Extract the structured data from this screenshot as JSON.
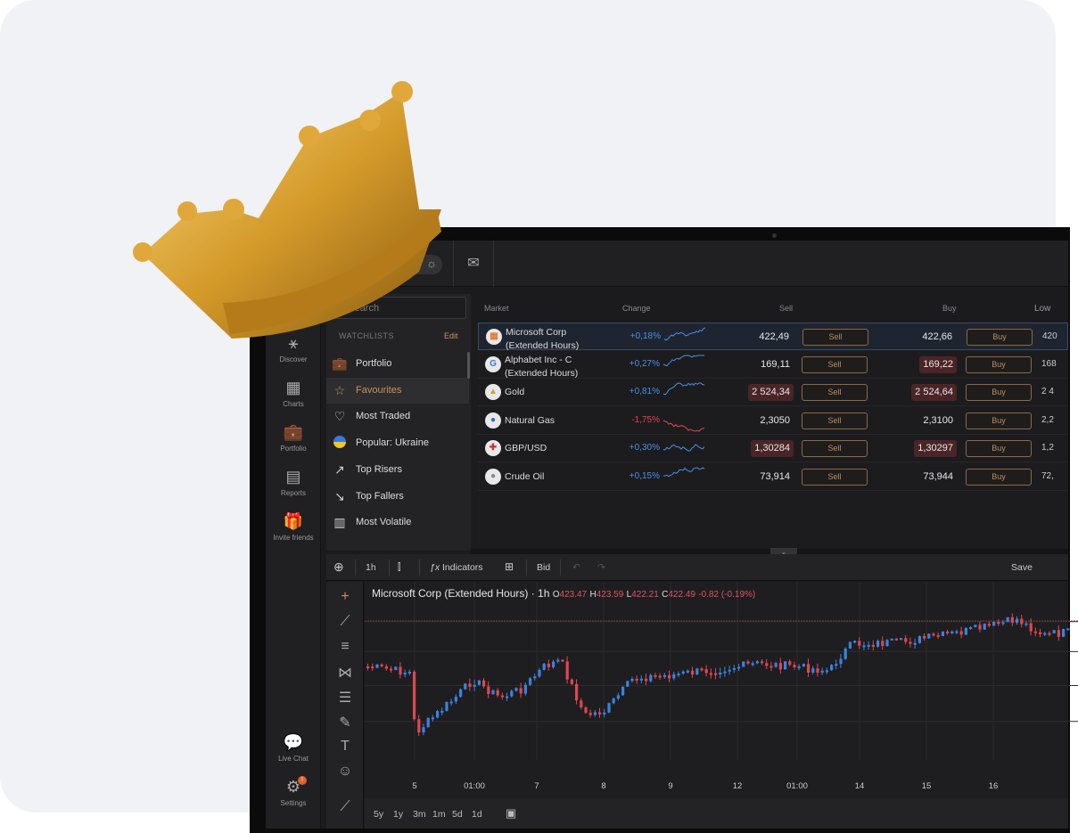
{
  "topbar": {
    "theme_dark_icon": "moon-icon",
    "theme_light_icon": "sun-icon",
    "mail_icon": "mail-icon"
  },
  "nav": [
    {
      "label": "Discover",
      "icon": "network-icon"
    },
    {
      "label": "Charts",
      "icon": "chart-icon"
    },
    {
      "label": "Portfolio",
      "icon": "briefcase-icon"
    },
    {
      "label": "Reports",
      "icon": "report-icon"
    },
    {
      "label": "Invite friends",
      "icon": "gift-icon"
    },
    {
      "label": "Live Chat",
      "icon": "chat-icon"
    },
    {
      "label": "Settings",
      "icon": "gear-icon",
      "badge": "!"
    }
  ],
  "search": {
    "placeholder": "Search"
  },
  "watchlists": {
    "title": "WATCHLISTS",
    "edit": "Edit",
    "items": [
      {
        "label": "Portfolio",
        "icon": "briefcase-icon"
      },
      {
        "label": "Favourites",
        "icon": "star-icon",
        "active": true
      },
      {
        "label": "Most Traded",
        "icon": "heart-icon"
      },
      {
        "label": "Popular: Ukraine",
        "icon": "ukraine-flag-icon"
      },
      {
        "label": "Top Risers",
        "icon": "trend-up-icon"
      },
      {
        "label": "Top Fallers",
        "icon": "trend-down-icon"
      },
      {
        "label": "Most Volatile",
        "icon": "bar-chart-icon"
      }
    ]
  },
  "table": {
    "headers": {
      "market": "Market",
      "change": "Change",
      "sell": "Sell",
      "buy": "Buy",
      "low": "Low"
    },
    "sell_label": "Sell",
    "buy_label": "Buy",
    "rows": [
      {
        "name1": "Microsoft Corp",
        "name2": "(Extended Hours)",
        "change": "+0,18%",
        "sell": "422,49",
        "buy": "422,66",
        "low": "420",
        "up": true,
        "sell_hl": false,
        "buy_hl": false,
        "selected": true
      },
      {
        "name1": "Alphabet Inc - C",
        "name2": "(Extended Hours)",
        "change": "+0,27%",
        "sell": "169,11",
        "buy": "169,22",
        "low": "168",
        "up": true,
        "sell_hl": false,
        "buy_hl": true
      },
      {
        "name1": "Gold",
        "name2": "",
        "change": "+0,81%",
        "sell": "2 524,34",
        "buy": "2 524,64",
        "low": "2 4",
        "up": true,
        "sell_hl": true,
        "buy_hl": true
      },
      {
        "name1": "Natural Gas",
        "name2": "",
        "change": "-1,75%",
        "sell": "2,3050",
        "buy": "2,3100",
        "low": "2,2",
        "up": false,
        "sell_hl": false,
        "buy_hl": false
      },
      {
        "name1": "GBP/USD",
        "name2": "",
        "change": "+0,30%",
        "sell": "1,30284",
        "buy": "1,30297",
        "low": "1,2",
        "up": true,
        "sell_hl": true,
        "buy_hl": true
      },
      {
        "name1": "Crude Oil",
        "name2": "",
        "change": "+0,15%",
        "sell": "73,914",
        "buy": "73,944",
        "low": "72,",
        "up": true,
        "sell_hl": false,
        "buy_hl": false
      }
    ]
  },
  "chart_toolbar": {
    "interval": "1h",
    "indicators": "Indicators",
    "price_type": "Bid",
    "save": "Save"
  },
  "chart": {
    "title": "Microsoft Corp (Extended Hours) · 1h",
    "o_label": "O",
    "o": "423.47",
    "h_label": "H",
    "h": "423.59",
    "l_label": "L",
    "l": "422.21",
    "c_label": "C",
    "c": "422.49",
    "change": "-0.82 (-0.19%)",
    "x_labels": [
      "5",
      "01:00",
      "7",
      "8",
      "9",
      "12",
      "01:00",
      "14",
      "15",
      "16"
    ],
    "up_color": "#3b82e0",
    "down_color": "#e0464f"
  },
  "ranges": [
    "5y",
    "1y",
    "3m",
    "1m",
    "5d",
    "1d"
  ],
  "colors": {
    "accent": "#c8925a",
    "positive": "#4a8fe8",
    "negative": "#e0464f"
  }
}
